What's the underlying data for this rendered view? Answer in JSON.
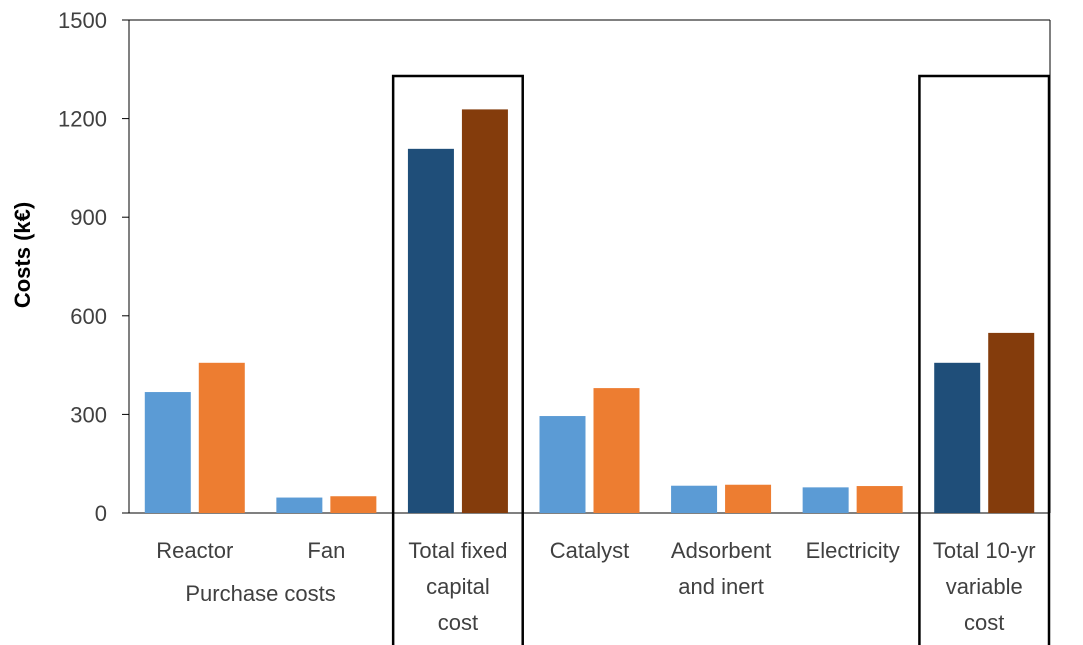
{
  "chart_data": {
    "type": "bar",
    "ylabel": "Costs (k€)",
    "ylim": [
      0,
      1500
    ],
    "yticks": [
      0,
      300,
      600,
      900,
      1200,
      1500
    ],
    "grid": false,
    "legend": "none",
    "categories": [
      {
        "lines": [
          "Reactor"
        ]
      },
      {
        "lines": [
          "Fan"
        ]
      },
      {
        "lines": [
          "Total fixed",
          "capital",
          "cost"
        ]
      },
      {
        "lines": [
          "Catalyst"
        ]
      },
      {
        "lines": [
          "Adsorbent",
          "and inert"
        ]
      },
      {
        "lines": [
          "Electricity"
        ]
      },
      {
        "lines": [
          "Total 10-yr",
          "variable",
          "cost"
        ]
      }
    ],
    "group_labels": [
      {
        "label": "Purchase costs",
        "span": [
          0,
          1
        ]
      }
    ],
    "highlighted_categories": [
      2,
      6
    ],
    "bars": [
      {
        "category": 0,
        "values": [
          368,
          457
        ],
        "colors": [
          "#5b9bd5",
          "#ed7d31"
        ]
      },
      {
        "category": 1,
        "values": [
          47,
          51
        ],
        "colors": [
          "#5b9bd5",
          "#ed7d31"
        ]
      },
      {
        "category": 2,
        "values": [
          1108,
          1228
        ],
        "colors": [
          "#1f4e79",
          "#843c0c"
        ]
      },
      {
        "category": 3,
        "values": [
          295,
          380
        ],
        "colors": [
          "#5b9bd5",
          "#ed7d31"
        ]
      },
      {
        "category": 4,
        "values": [
          83,
          86
        ],
        "colors": [
          "#5b9bd5",
          "#ed7d31"
        ]
      },
      {
        "category": 5,
        "values": [
          78,
          82
        ],
        "colors": [
          "#5b9bd5",
          "#ed7d31"
        ]
      },
      {
        "category": 6,
        "values": [
          457,
          548
        ],
        "colors": [
          "#1f4e79",
          "#843c0c"
        ]
      }
    ]
  }
}
